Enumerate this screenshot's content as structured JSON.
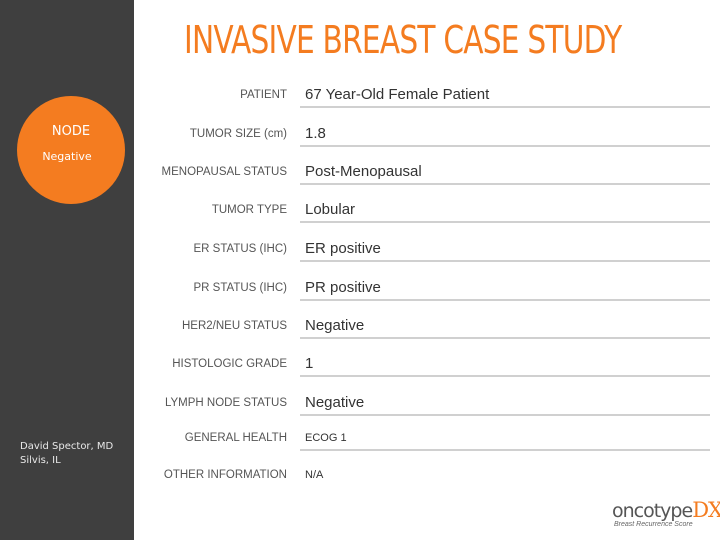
{
  "title": "INVASIVE BREAST CASE STUDY",
  "node": {
    "title": "NODE",
    "status": "Negative"
  },
  "author": {
    "name": "David Spector, MD",
    "location": "Silvis, IL"
  },
  "fields": [
    {
      "label": "PATIENT",
      "value": "67 Year-Old Female Patient"
    },
    {
      "label": "TUMOR SIZE (cm)",
      "value": "1.8"
    },
    {
      "label": "MENOPAUSAL STATUS",
      "value": "Post-Menopausal"
    },
    {
      "label": "TUMOR TYPE",
      "value": "Lobular"
    },
    {
      "label": "ER STATUS (IHC)",
      "value": "ER positive"
    },
    {
      "label": "PR STATUS (IHC)",
      "value": "PR positive"
    },
    {
      "label": "HER2/NEU STATUS",
      "value": "Negative"
    },
    {
      "label": "HISTOLOGIC GRADE",
      "value": "1"
    },
    {
      "label": "LYMPH NODE STATUS",
      "value": "Negative"
    },
    {
      "label": "GENERAL HEALTH",
      "value": "ECOG 1"
    },
    {
      "label": "OTHER INFORMATION",
      "value": "N/A"
    }
  ],
  "logo": {
    "word": "oncotype",
    "mark": "DX",
    "tagline": "Breast Recurrence Score"
  },
  "colors": {
    "accent": "#f47c20",
    "sidebar": "#3f3f3f",
    "rule": "#d0d0d0"
  }
}
